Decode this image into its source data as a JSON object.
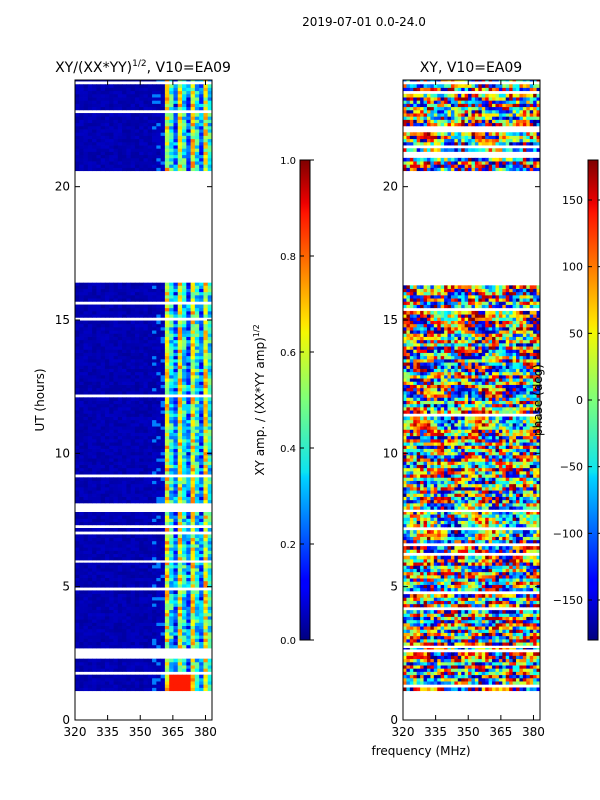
{
  "figure": {
    "suptitle": "2019-07-01 0.0-24.0",
    "shared_xlabel": "frequency (MHz)"
  },
  "chart_data": [
    {
      "type": "heatmap",
      "title": "XY/(XX*YY)^{1/2}, V10=EA09",
      "title_main": "XY/(XX*YY)",
      "title_sup": "1/2",
      "title_tail": ", V10=EA09",
      "xlabel": "",
      "ylabel": "UT (hours)",
      "xlim": [
        320,
        383
      ],
      "ylim": [
        0,
        24
      ],
      "xticks": [
        320,
        335,
        350,
        365,
        380
      ],
      "yticks": [
        0,
        5,
        10,
        15,
        20
      ],
      "data_blocks_ut_hours": [
        [
          1.1,
          2.3
        ],
        [
          2.7,
          5.9
        ],
        [
          6.0,
          7.8
        ],
        [
          7.9,
          16.4
        ],
        [
          20.6,
          24.0
        ]
      ],
      "colorbar": {
        "label": "XY amp. / (XX*YY amp)^{1/2}",
        "label_main": "XY amp. / (XX*YY amp)",
        "label_sup": "1/2",
        "range": [
          0.0,
          1.0
        ],
        "ticks": [
          "0.0",
          "0.2",
          "0.4",
          "0.6",
          "0.8",
          "1.0"
        ],
        "tick_values": [
          0.0,
          0.2,
          0.4,
          0.6,
          0.8,
          1.0
        ]
      }
    },
    {
      "type": "heatmap",
      "title": "XY, V10=EA09",
      "xlabel": "frequency (MHz)",
      "ylabel": "",
      "xlim": [
        320,
        383
      ],
      "ylim": [
        0,
        24
      ],
      "xticks": [
        320,
        335,
        350,
        365,
        380
      ],
      "yticks": [
        0,
        5,
        10,
        15,
        20
      ],
      "data_blocks_ut_hours": [
        [
          1.1,
          2.7
        ],
        [
          2.8,
          7.8
        ],
        [
          7.9,
          16.4
        ],
        [
          20.6,
          24.0
        ]
      ],
      "colorbar": {
        "label": "phase (deg)",
        "range": [
          -180,
          180
        ],
        "ticks": [
          "−150",
          "−100",
          "−50",
          "0",
          "50",
          "100",
          "150"
        ],
        "tick_values": [
          -150,
          -100,
          -50,
          0,
          50,
          100,
          150
        ]
      }
    }
  ]
}
